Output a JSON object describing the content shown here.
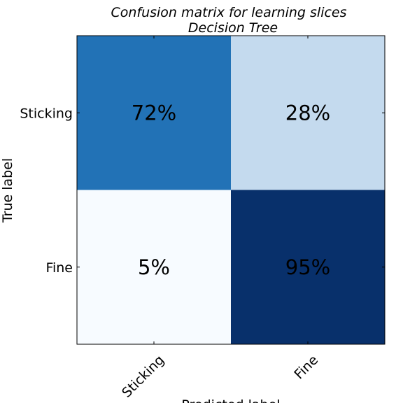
{
  "chart_data": {
    "type": "heatmap",
    "title": "Confusion matrix for learning slices",
    "subtitle": "Decision Tree",
    "xlabel": "Predicted label",
    "ylabel": "True label",
    "x_categories": [
      "Sticking",
      "Fine"
    ],
    "y_categories": [
      "Sticking",
      "Fine"
    ],
    "values": [
      [
        72,
        28
      ],
      [
        5,
        95
      ]
    ],
    "cell_labels": [
      [
        "72%",
        "28%"
      ],
      [
        "5%",
        "95%"
      ]
    ],
    "color_scale": {
      "name": "Blues",
      "min": 0,
      "max": 100,
      "low_color": "#f7fbff",
      "high_color": "#08306b"
    },
    "grid": false,
    "colorbar": false
  }
}
